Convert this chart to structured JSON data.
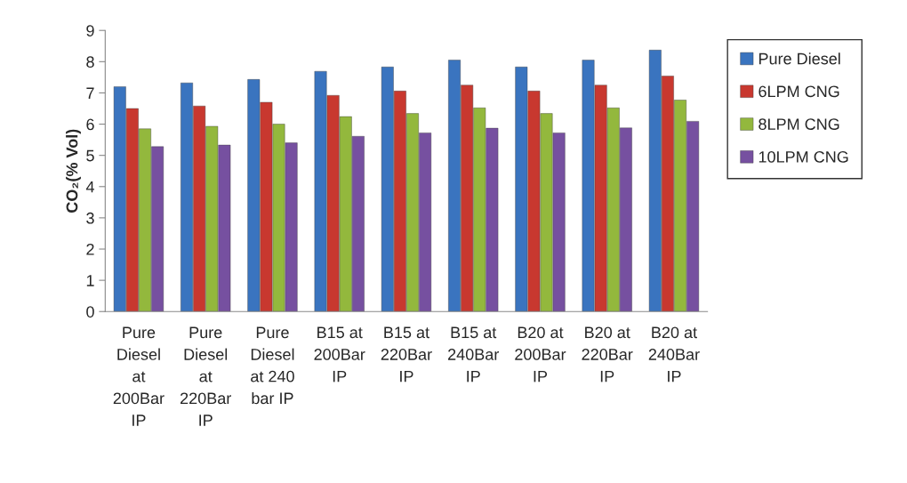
{
  "chart_data": {
    "type": "bar",
    "ylabel": "CO₂(% Vol)",
    "categories": [
      "Pure\nDiesel\nat\n200Bar\nIP",
      "Pure\nDiesel\nat\n220Bar\nIP",
      "Pure\nDiesel\nat 240\nbar IP",
      "B15 at\n200Bar\nIP",
      "B15 at\n220Bar\nIP",
      "B15 at\n240Bar\nIP",
      "B20 at\n200Bar\nIP",
      "B20 at\n220Bar\nIP",
      "B20 at\n240Bar\nIP"
    ],
    "series": [
      {
        "name": "Pure Diesel",
        "color": "#3a74bf",
        "values": [
          7.2,
          7.32,
          7.43,
          7.69,
          7.83,
          8.05,
          7.83,
          8.05,
          8.37
        ]
      },
      {
        "name": "6LPM CNG",
        "color": "#c8382f",
        "values": [
          6.5,
          6.58,
          6.7,
          6.92,
          7.06,
          7.25,
          7.06,
          7.25,
          7.54
        ]
      },
      {
        "name": "8LPM CNG",
        "color": "#93b83d",
        "values": [
          5.85,
          5.93,
          6.0,
          6.24,
          6.34,
          6.52,
          6.34,
          6.52,
          6.77
        ]
      },
      {
        "name": "10LPM CNG",
        "color": "#7650a0",
        "values": [
          5.28,
          5.33,
          5.4,
          5.61,
          5.72,
          5.87,
          5.72,
          5.88,
          6.09
        ]
      }
    ],
    "ylim": [
      0,
      9
    ],
    "yticks": [
      0,
      1,
      2,
      3,
      4,
      5,
      6,
      7,
      8,
      9
    ],
    "grid": false,
    "legend": "right"
  }
}
